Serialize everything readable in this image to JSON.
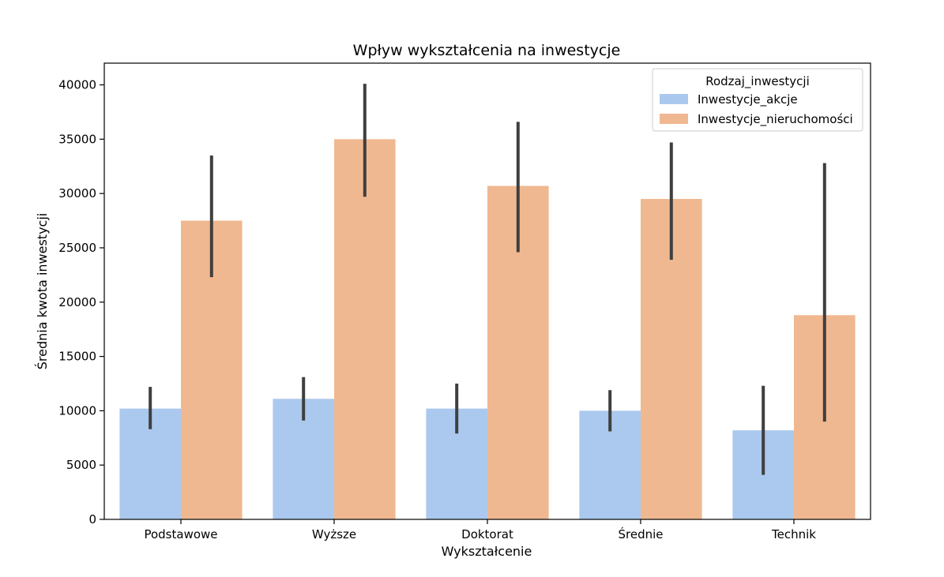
{
  "chart_data": {
    "type": "bar",
    "title": "Wpływ wykształcenia na inwestycje",
    "xlabel": "Wykształcenie",
    "ylabel": "Średnia kwota inwestycji",
    "categories": [
      "Podstawowe",
      "Wyższe",
      "Doktorat",
      "Średnie",
      "Technik"
    ],
    "ylim": [
      0,
      42000
    ],
    "yticks": [
      0,
      5000,
      10000,
      15000,
      20000,
      25000,
      30000,
      35000,
      40000
    ],
    "legend": {
      "title": "Rodzaj_inwestycji",
      "position": "top-right"
    },
    "grid": false,
    "series": [
      {
        "name": "Inwestycje_akcje",
        "color": "#abc9ee",
        "values": [
          10200,
          11100,
          10200,
          10000,
          8200
        ],
        "error_low": [
          8300,
          9100,
          7900,
          8100,
          4100
        ],
        "error_high": [
          12200,
          13100,
          12500,
          11900,
          12300
        ]
      },
      {
        "name": "Inwestycje_nieruchomości",
        "color": "#f0b891",
        "values": [
          27500,
          35000,
          30700,
          29500,
          18800
        ],
        "error_low": [
          22300,
          29700,
          24600,
          23900,
          9000
        ],
        "error_high": [
          33500,
          40100,
          36600,
          34700,
          32800
        ]
      }
    ],
    "error_bar_color": "#3f3f3f"
  }
}
